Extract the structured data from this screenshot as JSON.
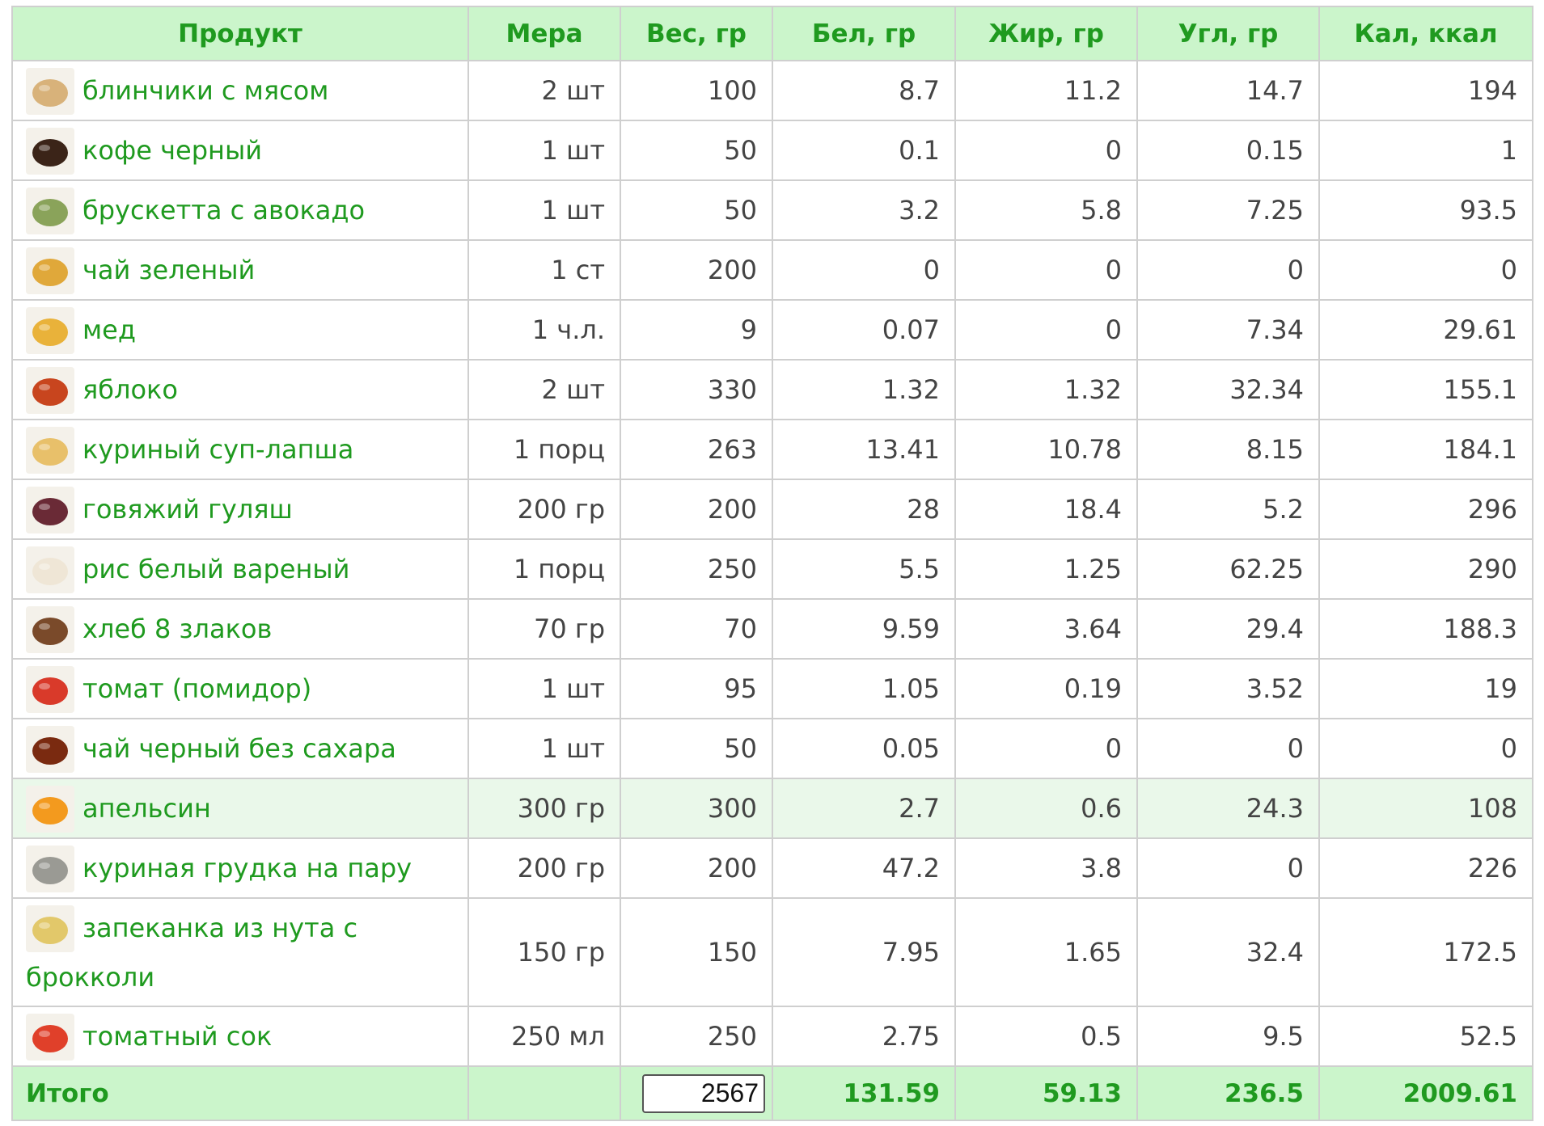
{
  "table": {
    "headers": [
      "Продукт",
      "Мера",
      "Вес, гр",
      "Бел, гр",
      "Жир, гр",
      "Угл, гр",
      "Кал, ккал"
    ],
    "rows": [
      {
        "name": "блинчики с мясом",
        "measure": "2 шт",
        "weight": "100",
        "protein": "8.7",
        "fat": "11.2",
        "carbs": "14.7",
        "kcal": "194",
        "icon": "pancakes-icon",
        "color": "#d8b27a"
      },
      {
        "name": "кофе черный",
        "measure": "1 шт",
        "weight": "50",
        "protein": "0.1",
        "fat": "0",
        "carbs": "0.15",
        "kcal": "1",
        "icon": "coffee-cup-icon",
        "color": "#3b2418"
      },
      {
        "name": "брускетта с авокадо",
        "measure": "1 шт",
        "weight": "50",
        "protein": "3.2",
        "fat": "5.8",
        "carbs": "7.25",
        "kcal": "93.5",
        "icon": "bruschetta-icon",
        "color": "#8aa35a"
      },
      {
        "name": "чай зеленый",
        "measure": "1 ст",
        "weight": "200",
        "protein": "0",
        "fat": "0",
        "carbs": "0",
        "kcal": "0",
        "icon": "green-tea-icon",
        "color": "#e0a83a"
      },
      {
        "name": "мед",
        "measure": "1 ч.л.",
        "weight": "9",
        "protein": "0.07",
        "fat": "0",
        "carbs": "7.34",
        "kcal": "29.61",
        "icon": "honey-icon",
        "color": "#e9b23a"
      },
      {
        "name": "яблоко",
        "measure": "2 шт",
        "weight": "330",
        "protein": "1.32",
        "fat": "1.32",
        "carbs": "32.34",
        "kcal": "155.1",
        "icon": "apple-icon",
        "color": "#c8451e"
      },
      {
        "name": "куриный суп-лапша",
        "measure": "1 порц",
        "weight": "263",
        "protein": "13.41",
        "fat": "10.78",
        "carbs": "8.15",
        "kcal": "184.1",
        "icon": "noodle-soup-icon",
        "color": "#e8c06a"
      },
      {
        "name": "говяжий гуляш",
        "measure": "200 гр",
        "weight": "200",
        "protein": "28",
        "fat": "18.4",
        "carbs": "5.2",
        "kcal": "296",
        "icon": "goulash-icon",
        "color": "#6a2a36"
      },
      {
        "name": "рис белый вареный",
        "measure": "1 порц",
        "weight": "250",
        "protein": "5.5",
        "fat": "1.25",
        "carbs": "62.25",
        "kcal": "290",
        "icon": "rice-bowl-icon",
        "color": "#efe6d6"
      },
      {
        "name": "хлеб 8 злаков",
        "measure": "70 гр",
        "weight": "70",
        "protein": "9.59",
        "fat": "3.64",
        "carbs": "29.4",
        "kcal": "188.3",
        "icon": "bread-icon",
        "color": "#7a4a2a"
      },
      {
        "name": "томат (помидор)",
        "measure": "1 шт",
        "weight": "95",
        "protein": "1.05",
        "fat": "0.19",
        "carbs": "3.52",
        "kcal": "19",
        "icon": "tomato-icon",
        "color": "#d93a2a"
      },
      {
        "name": "чай черный без сахара",
        "measure": "1 шт",
        "weight": "50",
        "protein": "0.05",
        "fat": "0",
        "carbs": "0",
        "kcal": "0",
        "icon": "black-tea-icon",
        "color": "#7a2a10"
      },
      {
        "name": "апельсин",
        "measure": "300 гр",
        "weight": "300",
        "protein": "2.7",
        "fat": "0.6",
        "carbs": "24.3",
        "kcal": "108",
        "icon": "orange-icon",
        "color": "#f39a1e",
        "highlight": true
      },
      {
        "name": "куриная грудка на пару",
        "measure": "200 гр",
        "weight": "200",
        "protein": "47.2",
        "fat": "3.8",
        "carbs": "0",
        "kcal": "226",
        "icon": "chicken-breast-icon",
        "color": "#9a9a94"
      },
      {
        "name": "запеканка из нута с брокколи",
        "measure": "150 гр",
        "weight": "150",
        "protein": "7.95",
        "fat": "1.65",
        "carbs": "32.4",
        "kcal": "172.5",
        "icon": "casserole-icon",
        "color": "#e2c86a",
        "tall": true
      },
      {
        "name": "томатный сок",
        "measure": "250 мл",
        "weight": "250",
        "protein": "2.75",
        "fat": "0.5",
        "carbs": "9.5",
        "kcal": "52.5",
        "icon": "tomato-juice-icon",
        "color": "#e0402a"
      }
    ],
    "total": {
      "label": "Итого",
      "measure": "",
      "weight": "2567",
      "protein": "131.59",
      "fat": "59.13",
      "carbs": "236.5",
      "kcal": "2009.61"
    }
  },
  "colors": {
    "header_bg": "#cbf5cb",
    "accent_text": "#1f9a1f",
    "highlight_row": "#eaf8ea",
    "border": "#cfcfcf"
  }
}
